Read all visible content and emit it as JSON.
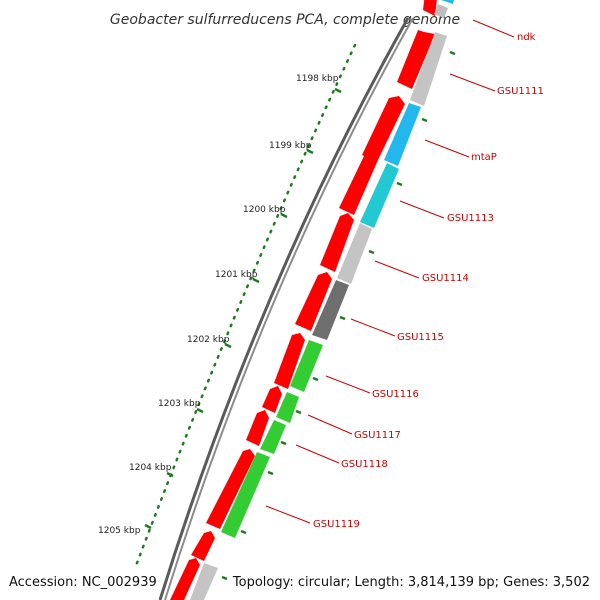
{
  "title": "Geobacter sulfurreducens PCA, complete genome",
  "accession": "Accession: NC_002939",
  "topology": "Topology: circular; Length: 3,814,139 bp; Genes: 3,502",
  "colors": {
    "label": "#cc0000",
    "tick": "#1e7a1e",
    "red": "#ff0000",
    "gray": "#c4c4c4",
    "darkgray": "#6e6e6e",
    "blue": "#22b8ee",
    "cyan": "#22c9d2",
    "green": "#33cc33"
  },
  "scale_ticks": [
    "1198 kbp",
    "1199 kbp",
    "1200 kbp",
    "1201 kbp",
    "1202 kbp",
    "1203 kbp",
    "1204 kbp",
    "1205 kbp"
  ],
  "gene_labels": [
    "ndk",
    "GSU1111",
    "mtaP",
    "GSU1113",
    "GSU1114",
    "GSU1115",
    "GSU1116",
    "GSU1117",
    "GSU1118",
    "GSU1119"
  ]
}
